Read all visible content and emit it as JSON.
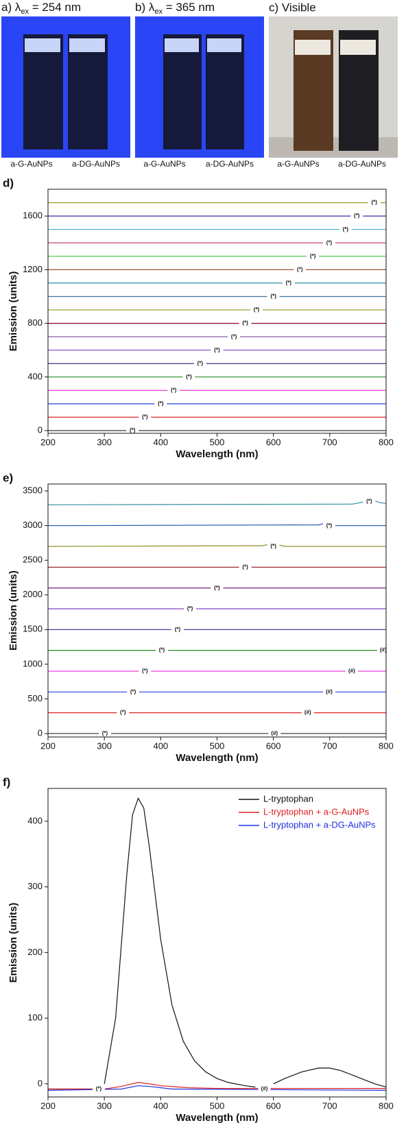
{
  "photos": [
    {
      "prefix": "a) λ",
      "subscript": "ex",
      "rest": " = 254 nm",
      "captions": [
        "a-G-AuNPs",
        "a-DG-AuNPs"
      ]
    },
    {
      "prefix": "b) λ",
      "subscript": "ex",
      "rest": " = 365 nm",
      "captions": [
        "a-G-AuNPs",
        "a-DG-AuNPs"
      ]
    },
    {
      "prefix": "c) Visible",
      "captions": [
        "a-G-AuNPs",
        "a-DG-AuNPs"
      ]
    }
  ],
  "chart_data": [
    {
      "type": "line",
      "label": "d)",
      "xlabel": "Wavelength (nm)",
      "ylabel": "Emission (units)",
      "xlim": [
        200,
        800
      ],
      "xticks": [
        200,
        300,
        400,
        500,
        600,
        700,
        800
      ],
      "ylim": [
        -20,
        1800
      ],
      "yticks": [
        0,
        400,
        800,
        1200,
        1600
      ],
      "series": [
        {
          "color": "#333333",
          "x": [
            200,
            800
          ],
          "values": [
            0,
            0
          ]
        },
        {
          "color": "#e02020",
          "x": [
            200,
            800
          ],
          "values": [
            100,
            100
          ]
        },
        {
          "color": "#2040e0",
          "x": [
            200,
            800
          ],
          "values": [
            200,
            200
          ]
        },
        {
          "color": "#e040e0",
          "x": [
            200,
            800
          ],
          "values": [
            300,
            300
          ]
        },
        {
          "color": "#209020",
          "x": [
            200,
            800
          ],
          "values": [
            400,
            400
          ]
        },
        {
          "color": "#202080",
          "x": [
            200,
            800
          ],
          "values": [
            500,
            500
          ]
        },
        {
          "color": "#8040c0",
          "x": [
            200,
            800
          ],
          "values": [
            600,
            600
          ]
        },
        {
          "color": "#8040a0",
          "x": [
            200,
            800
          ],
          "values": [
            700,
            700
          ]
        },
        {
          "color": "#900030",
          "x": [
            200,
            800
          ],
          "values": [
            800,
            800
          ]
        },
        {
          "color": "#a0a030",
          "x": [
            200,
            800
          ],
          "values": [
            900,
            900
          ]
        },
        {
          "color": "#4070a0",
          "x": [
            200,
            800
          ],
          "values": [
            1000,
            1000
          ]
        },
        {
          "color": "#2090a0",
          "x": [
            200,
            800
          ],
          "values": [
            1100,
            1100
          ]
        },
        {
          "color": "#a05030",
          "x": [
            200,
            800
          ],
          "values": [
            1200,
            1200
          ]
        },
        {
          "color": "#40c040",
          "x": [
            200,
            800
          ],
          "values": [
            1300,
            1300
          ]
        },
        {
          "color": "#c03060",
          "x": [
            200,
            800
          ],
          "values": [
            1400,
            1400
          ]
        },
        {
          "color": "#30b0c0",
          "x": [
            200,
            800
          ],
          "values": [
            1500,
            1500
          ]
        },
        {
          "color": "#3030a0",
          "x": [
            200,
            800
          ],
          "values": [
            1600,
            1600
          ]
        },
        {
          "color": "#9a9a20",
          "x": [
            200,
            800
          ],
          "values": [
            1700,
            1700
          ]
        }
      ],
      "annotations": [
        {
          "text": "(*)",
          "x": 350,
          "y": 0
        },
        {
          "text": "(*)",
          "x": 372,
          "y": 100
        },
        {
          "text": "(*)",
          "x": 400,
          "y": 200
        },
        {
          "text": "(*)",
          "x": 423,
          "y": 300
        },
        {
          "text": "(*)",
          "x": 450,
          "y": 400
        },
        {
          "text": "(*)",
          "x": 470,
          "y": 500
        },
        {
          "text": "(*)",
          "x": 500,
          "y": 600
        },
        {
          "text": "(*)",
          "x": 530,
          "y": 700
        },
        {
          "text": "(*)",
          "x": 550,
          "y": 800
        },
        {
          "text": "(*)",
          "x": 570,
          "y": 900
        },
        {
          "text": "(*)",
          "x": 600,
          "y": 1000
        },
        {
          "text": "(*)",
          "x": 627,
          "y": 1100
        },
        {
          "text": "(*)",
          "x": 647,
          "y": 1200
        },
        {
          "text": "(*)",
          "x": 670,
          "y": 1300
        },
        {
          "text": "(*)",
          "x": 699,
          "y": 1400
        },
        {
          "text": "(*)",
          "x": 728,
          "y": 1500
        },
        {
          "text": "(*)",
          "x": 748,
          "y": 1600
        },
        {
          "text": "(*)",
          "x": 779,
          "y": 1700
        }
      ]
    },
    {
      "type": "line",
      "label": "e)",
      "xlabel": "Wavelength (nm)",
      "ylabel": "Emission (units)",
      "xlim": [
        200,
        800
      ],
      "xticks": [
        200,
        300,
        400,
        500,
        600,
        700,
        800
      ],
      "ylim": [
        -50,
        3600
      ],
      "yticks": [
        0,
        500,
        1000,
        1500,
        2000,
        2500,
        3000,
        3500
      ],
      "series": [
        {
          "color": "#444444",
          "x": [
            200,
            800
          ],
          "values": [
            0,
            0
          ]
        },
        {
          "color": "#e02020",
          "x": [
            200,
            800
          ],
          "values": [
            300,
            300
          ]
        },
        {
          "color": "#2040e0",
          "x": [
            200,
            800
          ],
          "values": [
            600,
            600
          ]
        },
        {
          "color": "#e040e0",
          "x": [
            200,
            800
          ],
          "values": [
            900,
            900
          ]
        },
        {
          "color": "#209020",
          "x": [
            200,
            800
          ],
          "values": [
            1200,
            1200
          ]
        },
        {
          "color": "#303090",
          "x": [
            200,
            800
          ],
          "values": [
            1500,
            1500
          ]
        },
        {
          "color": "#8040c0",
          "x": [
            200,
            800
          ],
          "values": [
            1800,
            1800
          ]
        },
        {
          "color": "#802080",
          "x": [
            200,
            800
          ],
          "values": [
            2100,
            2100
          ]
        },
        {
          "color": "#901010",
          "x": [
            200,
            800
          ],
          "values": [
            2400,
            2400
          ]
        },
        {
          "color": "#909020",
          "x": [
            200,
            580,
            600,
            620,
            800
          ],
          "values": [
            2700,
            2710,
            2740,
            2700,
            2700
          ]
        },
        {
          "color": "#2050b0",
          "x": [
            200,
            680,
            695,
            710,
            800
          ],
          "values": [
            3000,
            3010,
            3040,
            3000,
            3000
          ]
        },
        {
          "color": "#3090a0",
          "x": [
            200,
            740,
            760,
            775,
            790,
            800
          ],
          "values": [
            3300,
            3310,
            3340,
            3370,
            3330,
            3320
          ]
        }
      ],
      "annotations": [
        {
          "text": "(*)",
          "x": 301,
          "y": 0
        },
        {
          "text": "(*)",
          "x": 333,
          "y": 300
        },
        {
          "text": "(*)",
          "x": 351,
          "y": 600
        },
        {
          "text": "(*)",
          "x": 372,
          "y": 900
        },
        {
          "text": "(*)",
          "x": 402,
          "y": 1200
        },
        {
          "text": "(*)",
          "x": 430,
          "y": 1500
        },
        {
          "text": "(*)",
          "x": 452,
          "y": 1800
        },
        {
          "text": "(*)",
          "x": 500,
          "y": 2100
        },
        {
          "text": "(*)",
          "x": 550,
          "y": 2400
        },
        {
          "text": "(*)",
          "x": 600,
          "y": 2700
        },
        {
          "text": "(*)",
          "x": 699,
          "y": 3000
        },
        {
          "text": "(*)",
          "x": 770,
          "y": 3350
        },
        {
          "text": "(#)",
          "x": 602,
          "y": 0
        },
        {
          "text": "(#)",
          "x": 661,
          "y": 300
        },
        {
          "text": "(#)",
          "x": 699,
          "y": 600
        },
        {
          "text": "(#)",
          "x": 739,
          "y": 900
        },
        {
          "text": "(#)",
          "x": 795,
          "y": 1200
        }
      ]
    },
    {
      "type": "line",
      "label": "f)",
      "xlabel": "Wavelength (nm)",
      "ylabel": "Emission (units)",
      "xlim": [
        200,
        800
      ],
      "xticks": [
        200,
        300,
        400,
        500,
        600,
        700,
        800
      ],
      "ylim": [
        -20,
        450
      ],
      "yticks": [
        0,
        100,
        200,
        300,
        400
      ],
      "legend": "upper right",
      "series": [
        {
          "name": "L-tryptophan",
          "color": "#111111",
          "x": [
            200,
            280,
            285,
            296,
            300,
            320,
            340,
            350,
            360,
            370,
            380,
            400,
            420,
            440,
            460,
            480,
            500,
            520,
            550,
            568,
            575,
            592,
            600,
            620,
            650,
            680,
            700,
            720,
            750,
            780,
            800
          ],
          "values": [
            -8,
            -8,
            null,
            null,
            0,
            100,
            320,
            410,
            435,
            420,
            360,
            220,
            120,
            65,
            35,
            18,
            8,
            2,
            -3,
            -5,
            null,
            null,
            0,
            8,
            18,
            24,
            24,
            20,
            10,
            0,
            -5
          ]
        },
        {
          "name": "L-tryptophan + a-G-AuNPs",
          "color": "#e02020",
          "x": [
            200,
            300,
            330,
            360,
            380,
            400,
            450,
            500,
            800
          ],
          "values": [
            -8,
            -8,
            -4,
            2,
            0,
            -3,
            -6,
            -7,
            -7
          ]
        },
        {
          "name": "L-tryptophan + a-DG-AuNPs",
          "color": "#2030e0",
          "x": [
            200,
            330,
            360,
            380,
            420,
            800
          ],
          "values": [
            -10,
            -8,
            -3,
            -4,
            -8,
            -10
          ]
        }
      ],
      "annotations": [
        {
          "text": "(*)",
          "x": 290,
          "y": -8
        },
        {
          "text": "(#)",
          "x": 584,
          "y": -8
        }
      ]
    }
  ]
}
